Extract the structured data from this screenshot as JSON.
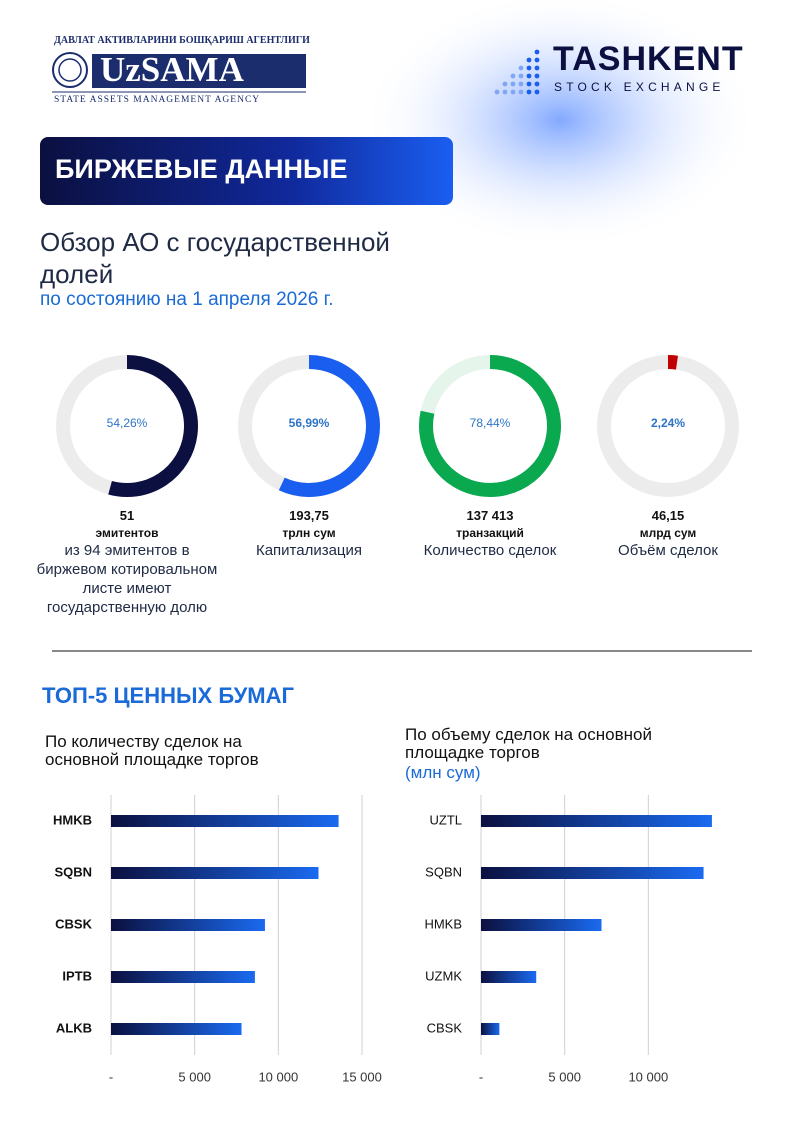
{
  "header": {
    "agency_line": "ДАВЛАТ АКТИВЛАРИНИ БОШҚАРИШ АГЕНТЛИГИ",
    "agency_name": "UzSAMA",
    "agency_subline": "STATE ASSETS MANAGEMENT AGENCY",
    "exchange_name": "TASHKENT",
    "exchange_subline": "STOCK EXCHANGE",
    "banner": "БИРЖЕВЫЕ ДАННЫЕ",
    "title": "Обзор АО с государственной долей",
    "subtitle": "по состоянию на 1 апреля 2026 г.",
    "section_title": "ТОП-5 ЦЕННЫХ БУМАГ"
  },
  "chart_data": [
    {
      "type": "donut",
      "values": [
        54.26
      ],
      "value_labels": [
        "54,26%"
      ],
      "ylim": [
        0,
        100
      ],
      "color": "#0b1040",
      "track_color": "#ececec",
      "stat": "51",
      "stat_unit": "эмитентов",
      "caption": "из 94 эмитентов в биржевом котировальном листе имеют государственную долю"
    },
    {
      "type": "donut",
      "values": [
        56.99
      ],
      "value_labels": [
        "56,99%"
      ],
      "ylim": [
        0,
        100
      ],
      "color": "#1a5ef0",
      "track_color": "#ececec",
      "stat": "193,75",
      "stat_unit": "трлн сум",
      "caption": "Капитализация"
    },
    {
      "type": "donut",
      "values": [
        78.44
      ],
      "value_labels": [
        "78,44%"
      ],
      "ylim": [
        0,
        100
      ],
      "color": "#0aa84f",
      "track_color": "#e5f5ec",
      "stat": "137 413",
      "stat_unit": "транзакций",
      "caption": "Количество сделок"
    },
    {
      "type": "donut",
      "values": [
        2.24
      ],
      "value_labels": [
        "2,24%"
      ],
      "ylim": [
        0,
        100
      ],
      "color": "#c00000",
      "track_color": "#ececec",
      "stat": "46,15",
      "stat_unit": "млрд сум",
      "caption": "Объём сделок"
    },
    {
      "type": "hbar",
      "title": "По количеству сделок на основной площадке торгов",
      "categories": [
        "HMKB",
        "SQBN",
        "CBSK",
        "IPTB",
        "ALKB"
      ],
      "values": [
        13600,
        12400,
        9200,
        8600,
        7800
      ],
      "xlim": [
        0,
        15000
      ],
      "xticks": [
        {
          "value": 0,
          "label": "-"
        },
        {
          "value": 5000,
          "label": "5 000"
        },
        {
          "value": 10000,
          "label": "10 000"
        },
        {
          "value": 15000,
          "label": "15 000"
        }
      ],
      "grid": true,
      "color": "#1a6af0"
    },
    {
      "type": "hbar",
      "title": "По объему сделок на основной площадке торгов",
      "subtitle": "(млн сум)",
      "categories": [
        "UZTL",
        "SQBN",
        "HMKB",
        "UZMK",
        "CBSK"
      ],
      "values": [
        13800,
        13300,
        7200,
        3300,
        1100
      ],
      "xlim": [
        0,
        15000
      ],
      "xticks": [
        {
          "value": 0,
          "label": "-"
        },
        {
          "value": 5000,
          "label": "5 000"
        },
        {
          "value": 10000,
          "label": "10 000"
        }
      ],
      "grid": true,
      "color": "#1a6af0"
    }
  ]
}
